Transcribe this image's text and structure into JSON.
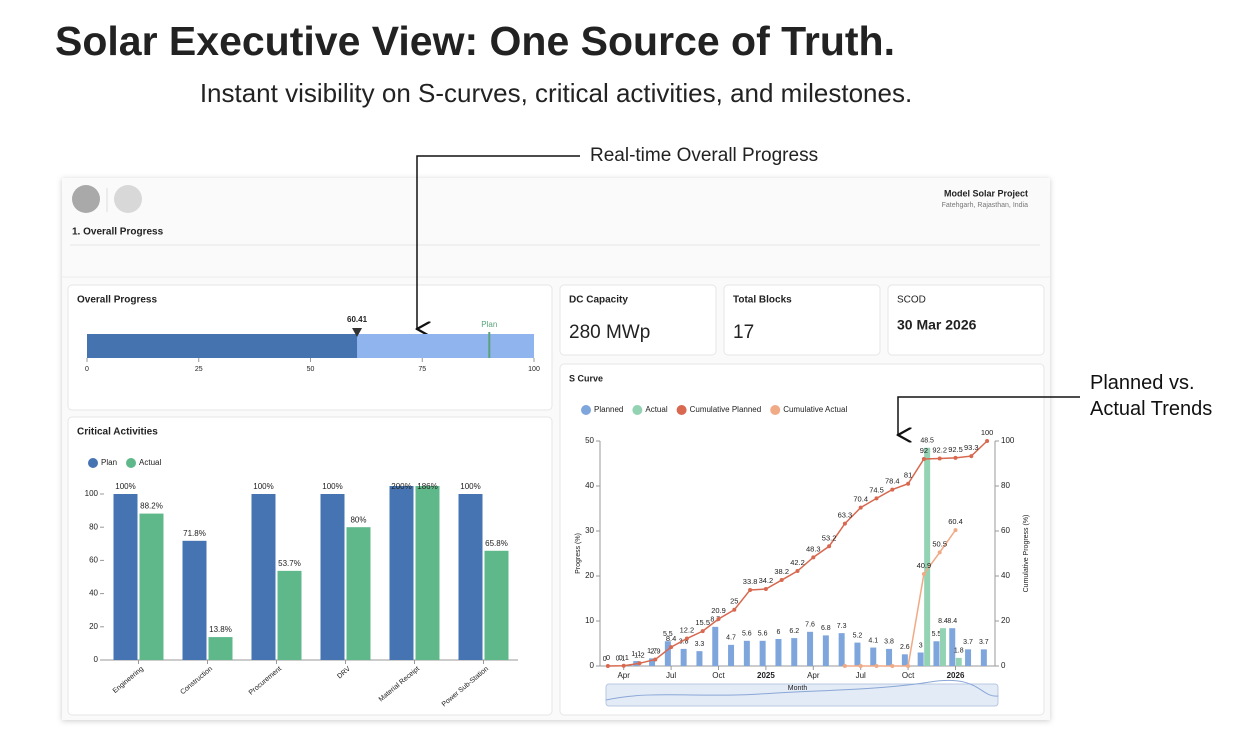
{
  "header": {
    "title": "Solar Executive View: One Source of Truth.",
    "subtitle": "Instant visibility on S-curves, critical activities, and milestones."
  },
  "annotations": [
    "Real-time Overall Progress",
    "Planned vs. Actual Trends"
  ],
  "dashboard": {
    "project": "Model Solar Project",
    "location": "Fatehgarh, Rajasthan, India",
    "section": "1. Overall Progress",
    "kpis": [
      {
        "label": "DC Capacity",
        "value": "280 MWp"
      },
      {
        "label": "Total Blocks",
        "value": 17
      },
      {
        "label": "SCOD",
        "value": "30 Mar 2026"
      }
    ]
  },
  "chart_data": [
    {
      "type": "bullet",
      "title": "Overall Progress",
      "value": 60.41,
      "target": 90,
      "target_label": "Plan",
      "xlim": [
        0,
        100
      ],
      "xticks": [
        0,
        25,
        50,
        75,
        100
      ],
      "color": "#4573b0",
      "range_color": "#8fb4ee",
      "target_color": "#5aa37a"
    },
    {
      "type": "bar",
      "title": "Critical Activities",
      "categories": [
        "Engineering",
        "Construction",
        "Procurement",
        "DRV",
        "Material Receipt",
        "Power Sub-Station"
      ],
      "series": [
        {
          "name": "Plan",
          "color": "#4674b3",
          "values": [
            100,
            71.8,
            100,
            100,
            200,
            100
          ],
          "value_labels": [
            "100%",
            "71.8%",
            "100%",
            "100%",
            "200%",
            "100%"
          ]
        },
        {
          "name": "Actual",
          "color": "#5fb88a",
          "values": [
            88.2,
            13.8,
            53.7,
            80,
            186,
            65.8
          ],
          "value_labels": [
            "88.2%",
            "13.8%",
            "53.7%",
            "80%",
            "186%",
            "65.8%"
          ]
        }
      ],
      "ylim": [
        0,
        100
      ],
      "yticks": [
        0,
        20,
        40,
        60,
        80,
        100
      ],
      "legend": "top-left"
    },
    {
      "type": "combo",
      "title": "S Curve",
      "x_label": "Month",
      "y_label": "Progress (%)",
      "y2_label": "Cumulative Progress (%)",
      "categories": [
        null,
        "Apr",
        null,
        null,
        "Jul",
        null,
        null,
        "Oct",
        null,
        null,
        "2025",
        null,
        null,
        "Apr",
        null,
        null,
        "Jul",
        null,
        null,
        "Oct",
        null,
        null,
        "2026",
        null,
        null
      ],
      "series": [
        {
          "name": "Planned",
          "type": "bar",
          "color": "#7fa6dc",
          "values": [
            0,
            0.1,
            1.1,
            1.7,
            5.5,
            3.8,
            3.3,
            8.7,
            4.7,
            5.6,
            5.6,
            6,
            6.2,
            7.6,
            6.8,
            7.3,
            5.2,
            4.1,
            3.8,
            2.6,
            3,
            5.5,
            8.4,
            3.7,
            3.7
          ]
        },
        {
          "name": "Actual",
          "type": "bar",
          "color": "#93d3b3",
          "values": [
            null,
            null,
            null,
            null,
            null,
            null,
            null,
            null,
            null,
            null,
            null,
            null,
            null,
            null,
            null,
            null,
            null,
            null,
            null,
            null,
            48.5,
            8.4,
            1.8,
            null,
            null
          ]
        },
        {
          "name": "Cumulative Planned",
          "type": "line",
          "axis": "y2",
          "color": "#d8684f",
          "values": [
            0,
            0.1,
            1.2,
            2.9,
            8.4,
            12.2,
            15.5,
            20.9,
            25,
            33.8,
            34.2,
            38.2,
            42.2,
            48.3,
            53.2,
            63.3,
            70.4,
            74.5,
            78.4,
            81,
            92,
            92.2,
            92.5,
            93.3,
            100
          ]
        },
        {
          "name": "Cumulative Actual",
          "type": "line",
          "axis": "y2",
          "color": "#f0aa85",
          "values": [
            null,
            null,
            null,
            null,
            null,
            null,
            null,
            null,
            null,
            null,
            null,
            null,
            null,
            null,
            null,
            0,
            0,
            0,
            0,
            0,
            40.9,
            50.5,
            60.4,
            null,
            null
          ]
        }
      ],
      "ylim": [
        0,
        50
      ],
      "yticks": [
        0,
        10,
        20,
        30,
        40,
        50
      ],
      "y2lim": [
        0,
        100
      ],
      "y2ticks": [
        0,
        20,
        40,
        60,
        80,
        100
      ],
      "legend": "top-left"
    }
  ]
}
